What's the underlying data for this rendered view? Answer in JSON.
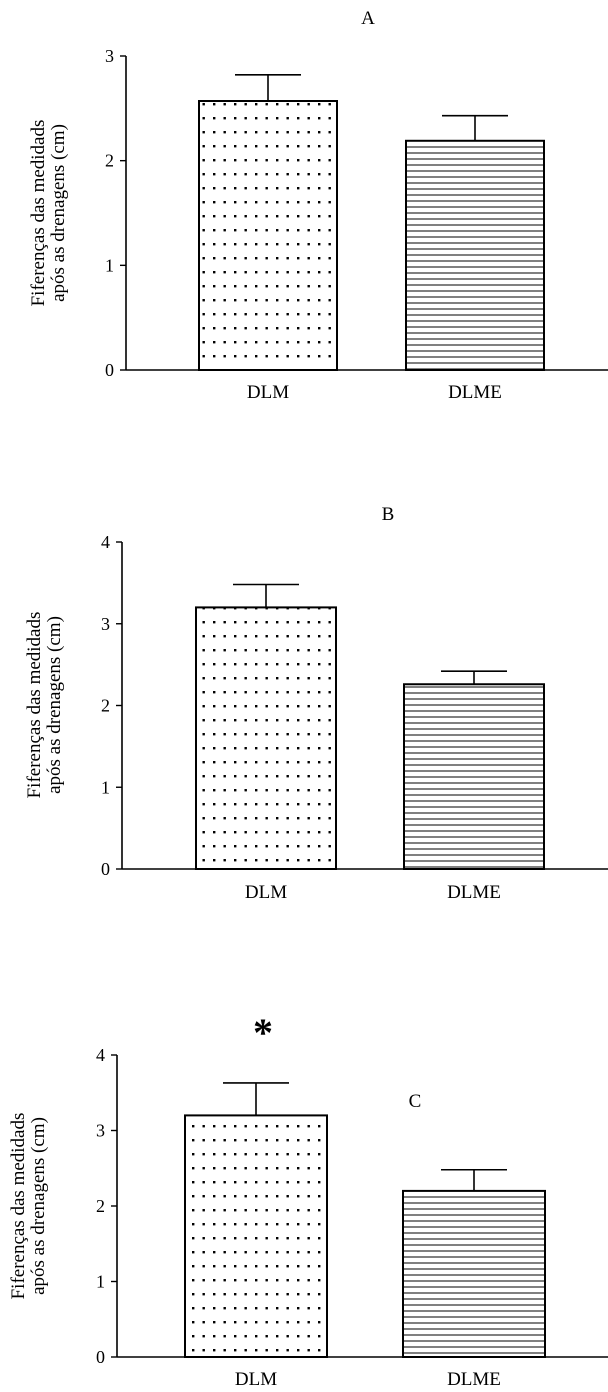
{
  "chart_data": [
    {
      "type": "bar",
      "panel_label": "A",
      "categories": [
        "DLM",
        "DLME"
      ],
      "values": [
        2.57,
        2.19
      ],
      "errors": [
        0.25,
        0.24
      ],
      "ylabel": [
        "Fiferenças das medidads",
        "após as drenagens (cm)"
      ],
      "ylim": [
        0,
        3
      ],
      "yticks": [
        "0",
        "1",
        "2",
        "3"
      ],
      "annotations": [],
      "fills": [
        "dots",
        "horizontal-lines"
      ]
    },
    {
      "type": "bar",
      "panel_label": "B",
      "categories": [
        "DLM",
        "DLME"
      ],
      "values": [
        3.2,
        2.26
      ],
      "errors": [
        0.28,
        0.16
      ],
      "ylabel": [
        "Fiferenças das medidads",
        "após as drenagens (cm)"
      ],
      "ylim": [
        0,
        4
      ],
      "yticks": [
        "0",
        "1",
        "2",
        "3",
        "4"
      ],
      "annotations": [],
      "fills": [
        "dots",
        "horizontal-lines"
      ]
    },
    {
      "type": "bar",
      "panel_label": "C",
      "categories": [
        "DLM",
        "DLME"
      ],
      "values": [
        3.2,
        2.2
      ],
      "errors": [
        0.43,
        0.28
      ],
      "ylabel": [
        "Fiferenças das medidads",
        "após as drenagens (cm)"
      ],
      "ylim": [
        0,
        4
      ],
      "yticks": [
        "0",
        "1",
        "2",
        "3",
        "4"
      ],
      "annotations": [
        {
          "text": "*",
          "category": "DLM"
        }
      ],
      "fills": [
        "dots",
        "horizontal-lines"
      ]
    }
  ]
}
